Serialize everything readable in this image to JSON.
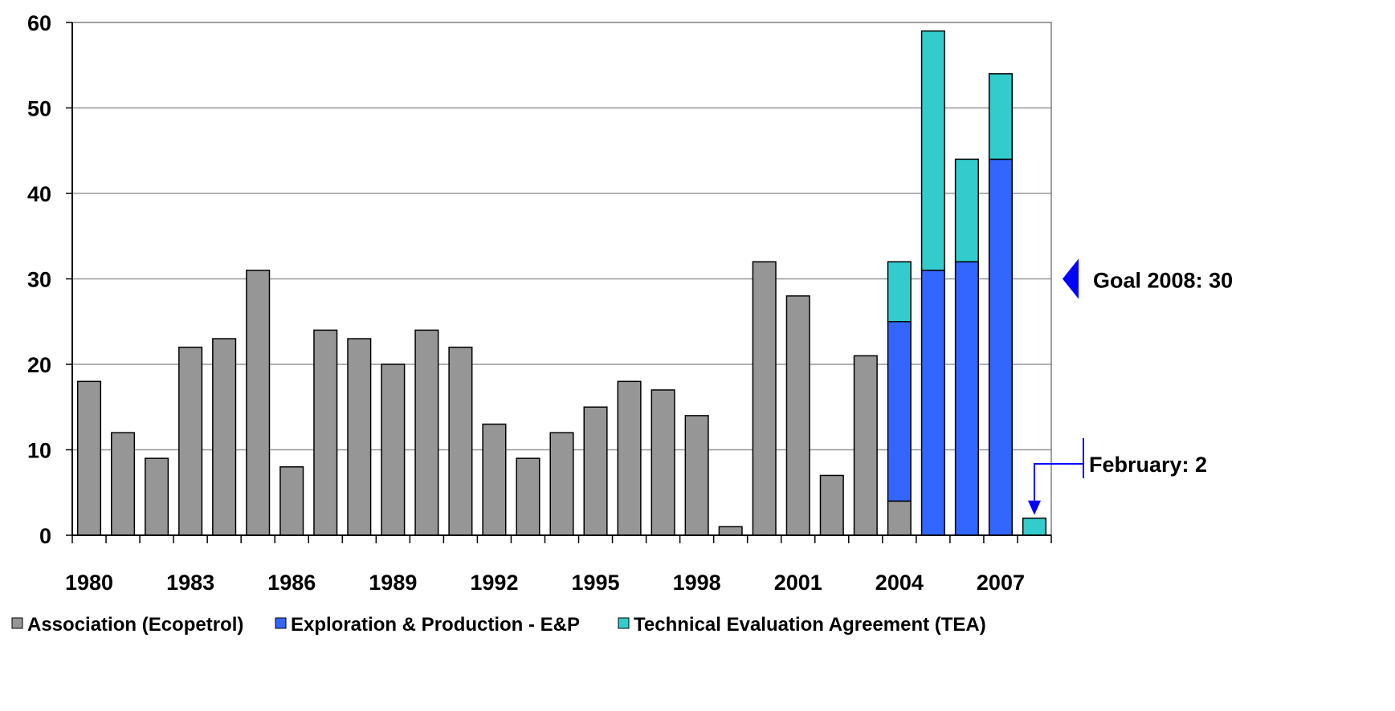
{
  "chart_data": {
    "type": "bar",
    "stacked": true,
    "categories": [
      "1980",
      "1981",
      "1982",
      "1983",
      "1984",
      "1985",
      "1986",
      "1987",
      "1988",
      "1989",
      "1990",
      "1991",
      "1992",
      "1993",
      "1994",
      "1995",
      "1996",
      "1997",
      "1998",
      "1999",
      "2000",
      "2001",
      "2002",
      "2003",
      "2004",
      "2005",
      "2006",
      "2007",
      "2008"
    ],
    "x_tick_labels": [
      "1980",
      "1983",
      "1986",
      "1989",
      "1992",
      "1995",
      "1998",
      "2001",
      "2004",
      "2007"
    ],
    "series": [
      {
        "name": "Association (Ecopetrol)",
        "color": "#969696",
        "values": [
          18,
          12,
          9,
          22,
          23,
          31,
          8,
          24,
          23,
          20,
          24,
          22,
          13,
          9,
          12,
          15,
          18,
          17,
          14,
          1,
          32,
          28,
          7,
          21,
          4,
          0,
          0,
          0,
          0
        ]
      },
      {
        "name": "Exploration & Production - E&P",
        "color": "#3366ff",
        "values": [
          0,
          0,
          0,
          0,
          0,
          0,
          0,
          0,
          0,
          0,
          0,
          0,
          0,
          0,
          0,
          0,
          0,
          0,
          0,
          0,
          0,
          0,
          0,
          0,
          21,
          31,
          32,
          44,
          0
        ]
      },
      {
        "name": "Technical Evaluation Agreement  (TEA)",
        "color": "#33cccc",
        "values": [
          0,
          0,
          0,
          0,
          0,
          0,
          0,
          0,
          0,
          0,
          0,
          0,
          0,
          0,
          0,
          0,
          0,
          0,
          0,
          0,
          0,
          0,
          0,
          0,
          7,
          28,
          12,
          10,
          2
        ]
      }
    ],
    "y_ticks": [
      0,
      10,
      20,
      30,
      40,
      50,
      60
    ],
    "ylim": [
      0,
      60
    ],
    "grid": true,
    "legend_position": "bottom",
    "annotations": {
      "goal": {
        "text": "Goal 2008:  30",
        "value": 30,
        "marker_color": "#0000ff"
      },
      "february": {
        "text": "February: 2",
        "value": 2,
        "category": "2008",
        "arrow_color": "#0000ff"
      }
    }
  }
}
